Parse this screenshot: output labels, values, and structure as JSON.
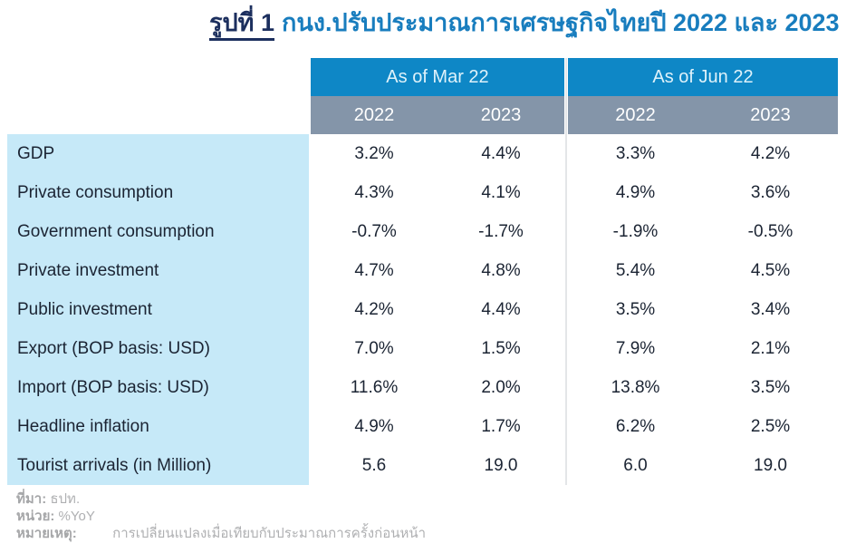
{
  "chart_data": {
    "type": "table",
    "title_prefix": "รูปที่ 1",
    "title": "กนง.ปรับประมาณการเศรษฐกิจไทยปี 2022 และ 2023",
    "column_groups": [
      "As of Mar 22",
      "As of Jun 22"
    ],
    "year_columns": [
      "2022",
      "2023",
      "2022",
      "2023"
    ],
    "rows": [
      {
        "label": "GDP",
        "values": [
          "3.2%",
          "4.4%",
          "3.3%",
          "4.2%"
        ]
      },
      {
        "label": "Private consumption",
        "values": [
          "4.3%",
          "4.1%",
          "4.9%",
          "3.6%"
        ]
      },
      {
        "label": "Government consumption",
        "values": [
          "-0.7%",
          "-1.7%",
          "-1.9%",
          "-0.5%"
        ]
      },
      {
        "label": "Private investment",
        "values": [
          "4.7%",
          "4.8%",
          "5.4%",
          "4.5%"
        ]
      },
      {
        "label": "Public investment",
        "values": [
          "4.2%",
          "4.4%",
          "3.5%",
          "3.4%"
        ]
      },
      {
        "label": "Export (BOP basis: USD)",
        "values": [
          "7.0%",
          "1.5%",
          "7.9%",
          "2.1%"
        ]
      },
      {
        "label": "Import (BOP basis: USD)",
        "values": [
          "11.6%",
          "2.0%",
          "13.8%",
          "3.5%"
        ]
      },
      {
        "label": "Headline inflation",
        "values": [
          "4.9%",
          "1.7%",
          "6.2%",
          "2.5%"
        ]
      },
      {
        "label": "Tourist arrivals (in Million)",
        "values": [
          "5.6",
          "19.0",
          "6.0",
          "19.0"
        ]
      }
    ],
    "unit": "%YoY",
    "source": "ธปท.",
    "layout": {
      "legend": "none",
      "grid": "off"
    }
  },
  "footer": {
    "source_label": "ที่มา:",
    "source_value": "ธปท.",
    "unit_label": "หน่วย:",
    "unit_value": "%YoY",
    "note_label": "หมายเหตุ:",
    "note_value": "การเปลี่ยนแปลงเมื่อเทียบกับประมาณการครั้งก่อนหน้า"
  },
  "colors": {
    "header_blue": "#0E87C6",
    "header_gray": "#8495A9",
    "row_label_bg": "#C6E9F8",
    "title_dark_navy": "#1C2F5E",
    "title_blue": "#187DBE",
    "cell_text": "#1B2433",
    "footer_gray": "#A5A6A8"
  }
}
